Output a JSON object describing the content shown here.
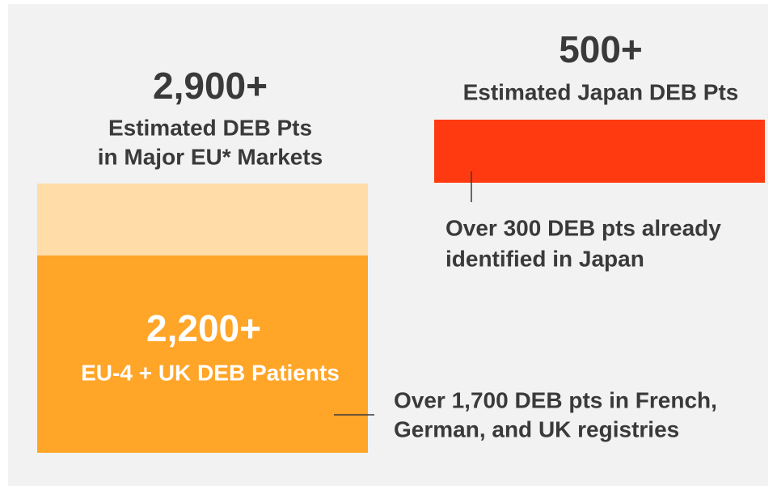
{
  "eu": {
    "total": "2,900+",
    "total_caption": [
      "Estimated DEB Pts",
      "in Major EU* Markets"
    ],
    "identified": "2,200+",
    "identified_caption": "EU-4 + UK DEB Patients",
    "note": [
      "Over 1,700 DEB pts in French,",
      "German, and UK registries"
    ]
  },
  "japan": {
    "total": "500+",
    "total_caption": "Estimated Japan DEB Pts",
    "note": [
      "Over 300 DEB pts already",
      "identified in Japan"
    ]
  }
}
